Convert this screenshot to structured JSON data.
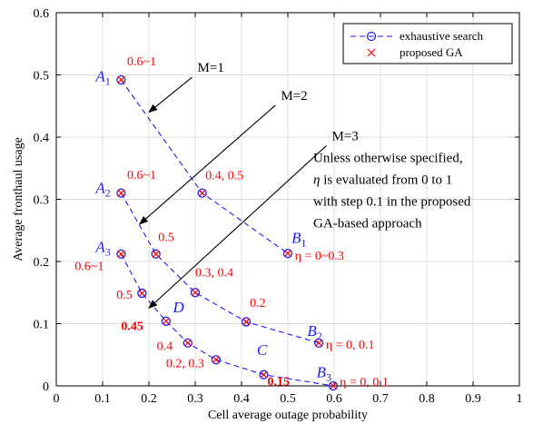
{
  "chart_data": {
    "type": "line",
    "xlabel": "Cell average outage probability",
    "ylabel": "Average fronthaul usage",
    "xlim": [
      0,
      1
    ],
    "ylim": [
      0,
      0.6
    ],
    "x_ticks": [
      "0",
      "0.1",
      "0.2",
      "0.3",
      "0.4",
      "0.5",
      "0.6",
      "0.7",
      "0.8",
      "0.9",
      "1"
    ],
    "y_ticks": [
      "0",
      "0.1",
      "0.2",
      "0.3",
      "0.4",
      "0.5",
      "0.6"
    ],
    "grid": true,
    "legend_position": "top-right",
    "legend": [
      "exhaustive search",
      "proposed GA"
    ],
    "colors": {
      "line": "#1a1aff",
      "marker": "#ff0000",
      "text_red": "#ff0000",
      "text_blue": "#1a1aff"
    },
    "series": [
      {
        "label": "M=1",
        "points": [
          [
            0.14,
            0.492
          ],
          [
            0.315,
            0.31
          ],
          [
            0.5,
            0.213
          ]
        ]
      },
      {
        "label": "M=2",
        "points": [
          [
            0.14,
            0.31
          ],
          [
            0.215,
            0.212
          ],
          [
            0.3,
            0.15
          ],
          [
            0.41,
            0.103
          ],
          [
            0.567,
            0.069
          ]
        ]
      },
      {
        "label": "M=3",
        "points": [
          [
            0.14,
            0.212
          ],
          [
            0.185,
            0.149
          ],
          [
            0.237,
            0.104
          ],
          [
            0.284,
            0.069
          ],
          [
            0.345,
            0.042
          ],
          [
            0.448,
            0.018
          ],
          [
            0.598,
            0.0
          ]
        ]
      }
    ],
    "annotations": [
      {
        "text": "M=1",
        "x": 0.305,
        "y": 0.505,
        "color": "black",
        "arrow_to": [
          0.2,
          0.44
        ]
      },
      {
        "text": "M=2",
        "x": 0.485,
        "y": 0.46,
        "color": "black",
        "arrow_to": [
          0.18,
          0.26
        ]
      },
      {
        "text": "M=3",
        "x": 0.595,
        "y": 0.395,
        "color": "black",
        "arrow_to": [
          0.2,
          0.125
        ]
      },
      {
        "text": "A",
        "sub": "1",
        "x": 0.085,
        "y": 0.49,
        "color": "blue"
      },
      {
        "text": "A",
        "sub": "2",
        "x": 0.085,
        "y": 0.31,
        "color": "blue"
      },
      {
        "text": "A",
        "sub": "3",
        "x": 0.085,
        "y": 0.215,
        "color": "blue"
      },
      {
        "text": "B",
        "sub": "1",
        "x": 0.508,
        "y": 0.23,
        "color": "blue"
      },
      {
        "text": "B",
        "sub": "2",
        "x": 0.542,
        "y": 0.08,
        "color": "blue"
      },
      {
        "text": "B",
        "sub": "3",
        "x": 0.562,
        "y": 0.014,
        "color": "blue"
      },
      {
        "text": "C",
        "x": 0.433,
        "y": 0.05,
        "color": "blue"
      },
      {
        "text": "D",
        "x": 0.252,
        "y": 0.118,
        "color": "blue"
      },
      {
        "text": "0.6~1",
        "x": 0.153,
        "y": 0.515,
        "color": "red"
      },
      {
        "text": "0.6~1",
        "x": 0.153,
        "y": 0.333,
        "color": "red"
      },
      {
        "text": "0.6~1",
        "x": 0.04,
        "y": 0.186,
        "color": "red"
      },
      {
        "text": "0.4, 0.5",
        "x": 0.322,
        "y": 0.332,
        "color": "red"
      },
      {
        "text": "0.5",
        "x": 0.22,
        "y": 0.233,
        "color": "red"
      },
      {
        "text": "0.3, 0.4",
        "x": 0.3,
        "y": 0.176,
        "color": "red"
      },
      {
        "text": "0.2",
        "x": 0.418,
        "y": 0.127,
        "color": "red"
      },
      {
        "text": "0.5",
        "x": 0.13,
        "y": 0.14,
        "color": "red"
      },
      {
        "text": "0.45",
        "x": 0.14,
        "y": 0.09,
        "color": "red",
        "bold": true
      },
      {
        "text": "0.4",
        "x": 0.217,
        "y": 0.058,
        "color": "red"
      },
      {
        "text": "0.2, 0.3",
        "x": 0.237,
        "y": 0.03,
        "color": "red"
      },
      {
        "text": "0.15",
        "x": 0.456,
        "y": 0.001,
        "color": "red",
        "bold": true
      },
      {
        "text": "η = 0~0.3",
        "x": 0.515,
        "y": 0.203,
        "color": "red"
      },
      {
        "text": "η = 0, 0.1",
        "x": 0.582,
        "y": 0.06,
        "color": "red"
      },
      {
        "text": "η = 0, 0.1",
        "x": 0.612,
        "y": 0.0,
        "color": "red"
      }
    ],
    "note_lines": [
      "Unless otherwise specified,",
      "η is evaluated from 0 to 1",
      "with step 0.1 in the proposed",
      "GA-based approach"
    ]
  }
}
